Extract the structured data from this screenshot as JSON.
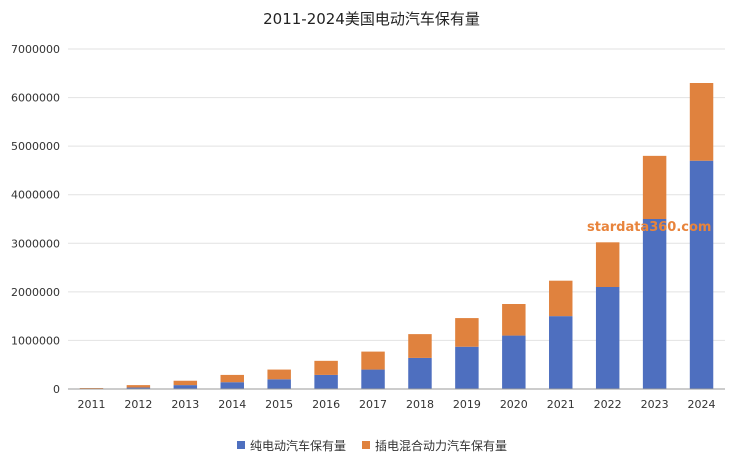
{
  "chart_data": {
    "type": "bar",
    "stacked": true,
    "title": "2011-2024美国电动汽车保有量",
    "categories": [
      "2011",
      "2012",
      "2013",
      "2014",
      "2015",
      "2016",
      "2017",
      "2018",
      "2019",
      "2020",
      "2021",
      "2022",
      "2023",
      "2024"
    ],
    "series": [
      {
        "name": "纯电动汽车保有量",
        "color": "#4e6fbf",
        "values": [
          10000,
          30000,
          80000,
          140000,
          200000,
          290000,
          400000,
          640000,
          870000,
          1100000,
          1500000,
          2100000,
          3500000,
          4700000
        ]
      },
      {
        "name": "插电混合动力汽车保有量",
        "color": "#e0823e",
        "values": [
          10000,
          50000,
          90000,
          150000,
          200000,
          290000,
          370000,
          490000,
          590000,
          650000,
          730000,
          920000,
          1300000,
          1600000
        ]
      }
    ],
    "ylim": [
      0,
      7000000
    ],
    "yticks": [
      "0",
      "1000000",
      "2000000",
      "3000000",
      "4000000",
      "5000000",
      "6000000",
      "7000000"
    ],
    "grid": true,
    "legend_position": "bottom",
    "watermark": "stardata360.com"
  }
}
